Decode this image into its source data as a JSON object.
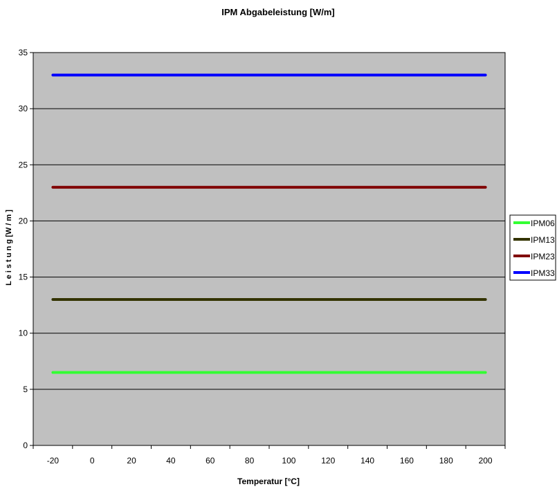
{
  "chart_data": {
    "type": "line",
    "title": "IPM Abgabeleistung [W/m]",
    "xlabel": "Temperatur [°C]",
    "ylabel": "L e i s t u n g  [W / m ]",
    "x": [
      -20,
      0,
      20,
      40,
      60,
      80,
      100,
      120,
      140,
      160,
      180,
      200
    ],
    "xlim": [
      -20,
      200
    ],
    "ylim": [
      0,
      35
    ],
    "yticks": [
      0,
      5,
      10,
      15,
      20,
      25,
      30,
      35
    ],
    "grid": "horizontal",
    "legend_position": "right",
    "series": [
      {
        "name": "IPM06",
        "color": "#33ff33",
        "values": [
          6.5,
          6.5,
          6.5,
          6.5,
          6.5,
          6.5,
          6.5,
          6.5,
          6.5,
          6.5,
          6.5,
          6.5
        ]
      },
      {
        "name": "IPM13",
        "color": "#333300",
        "values": [
          13,
          13,
          13,
          13,
          13,
          13,
          13,
          13,
          13,
          13,
          13,
          13
        ]
      },
      {
        "name": "IPM23",
        "color": "#800000",
        "values": [
          23,
          23,
          23,
          23,
          23,
          23,
          23,
          23,
          23,
          23,
          23,
          23
        ]
      },
      {
        "name": "IPM33",
        "color": "#0000ff",
        "values": [
          33,
          33,
          33,
          33,
          33,
          33,
          33,
          33,
          33,
          33,
          33,
          33
        ]
      }
    ],
    "plot_background": "#c0c0c0"
  }
}
